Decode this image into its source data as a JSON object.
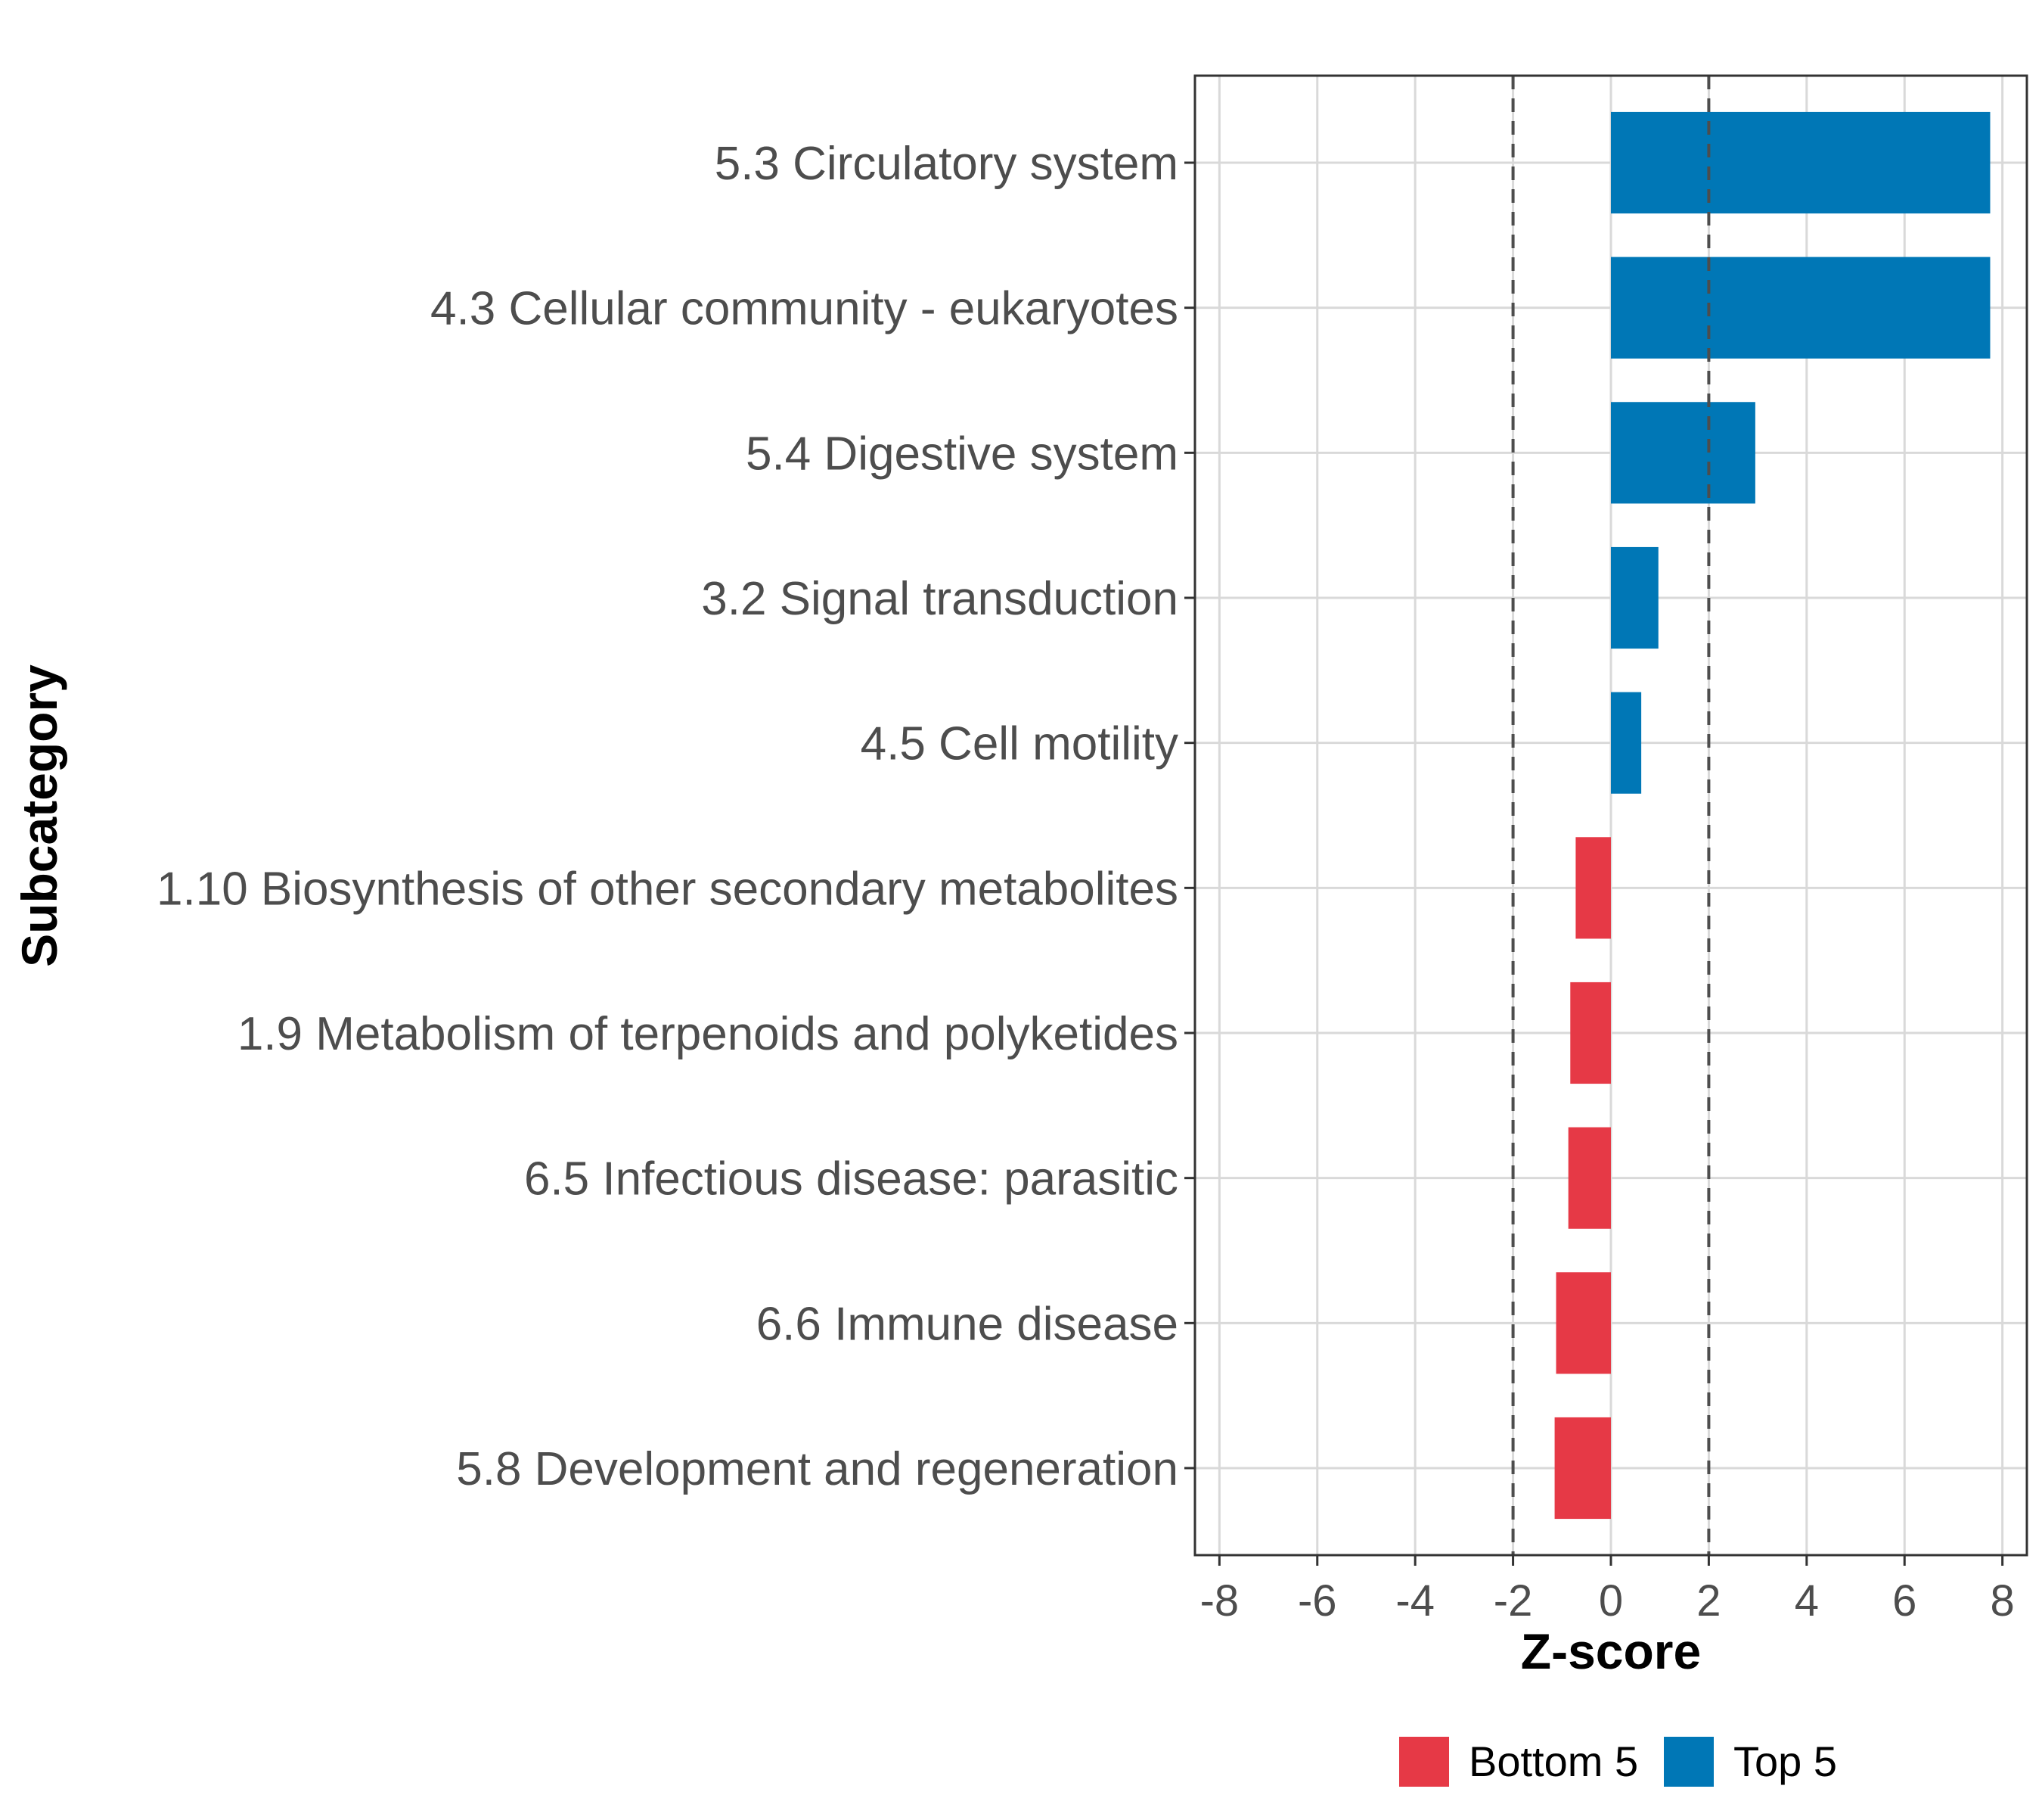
{
  "chart_data": {
    "type": "bar",
    "orientation": "horizontal",
    "title": "",
    "xlabel": "Z-score",
    "ylabel": "Subcategory",
    "xlim": [
      -8.5,
      8.5
    ],
    "x_ticks": [
      -8,
      -6,
      -4,
      -2,
      0,
      2,
      4,
      6,
      8
    ],
    "x_tick_labels": [
      "-8",
      "-6",
      "-4",
      "-2",
      "0",
      "2",
      "4",
      "6",
      "8"
    ],
    "reference_lines": [
      -2,
      2
    ],
    "grid": true,
    "legend_position": "bottom",
    "categories": [
      "5.3 Circulatory system",
      "4.3 Cellular community - eukaryotes",
      "5.4 Digestive system",
      "3.2 Signal transduction",
      "4.5 Cell motility",
      "1.10 Biosynthesis of other secondary metabolites",
      "1.9 Metabolism of terpenoids and polyketides",
      "6.5 Infectious disease: parasitic",
      "6.6 Immune disease",
      "5.8 Development and regeneration"
    ],
    "values": [
      7.75,
      7.75,
      2.95,
      0.97,
      0.62,
      -0.72,
      -0.83,
      -0.87,
      -1.12,
      -1.15
    ],
    "groups": [
      "Top 5",
      "Top 5",
      "Top 5",
      "Top 5",
      "Top 5",
      "Bottom 5",
      "Bottom 5",
      "Bottom 5",
      "Bottom 5",
      "Bottom 5"
    ],
    "legend": [
      {
        "name": "Bottom 5",
        "color": "#e63946"
      },
      {
        "name": "Top 5",
        "color": "#0077b6"
      }
    ]
  }
}
